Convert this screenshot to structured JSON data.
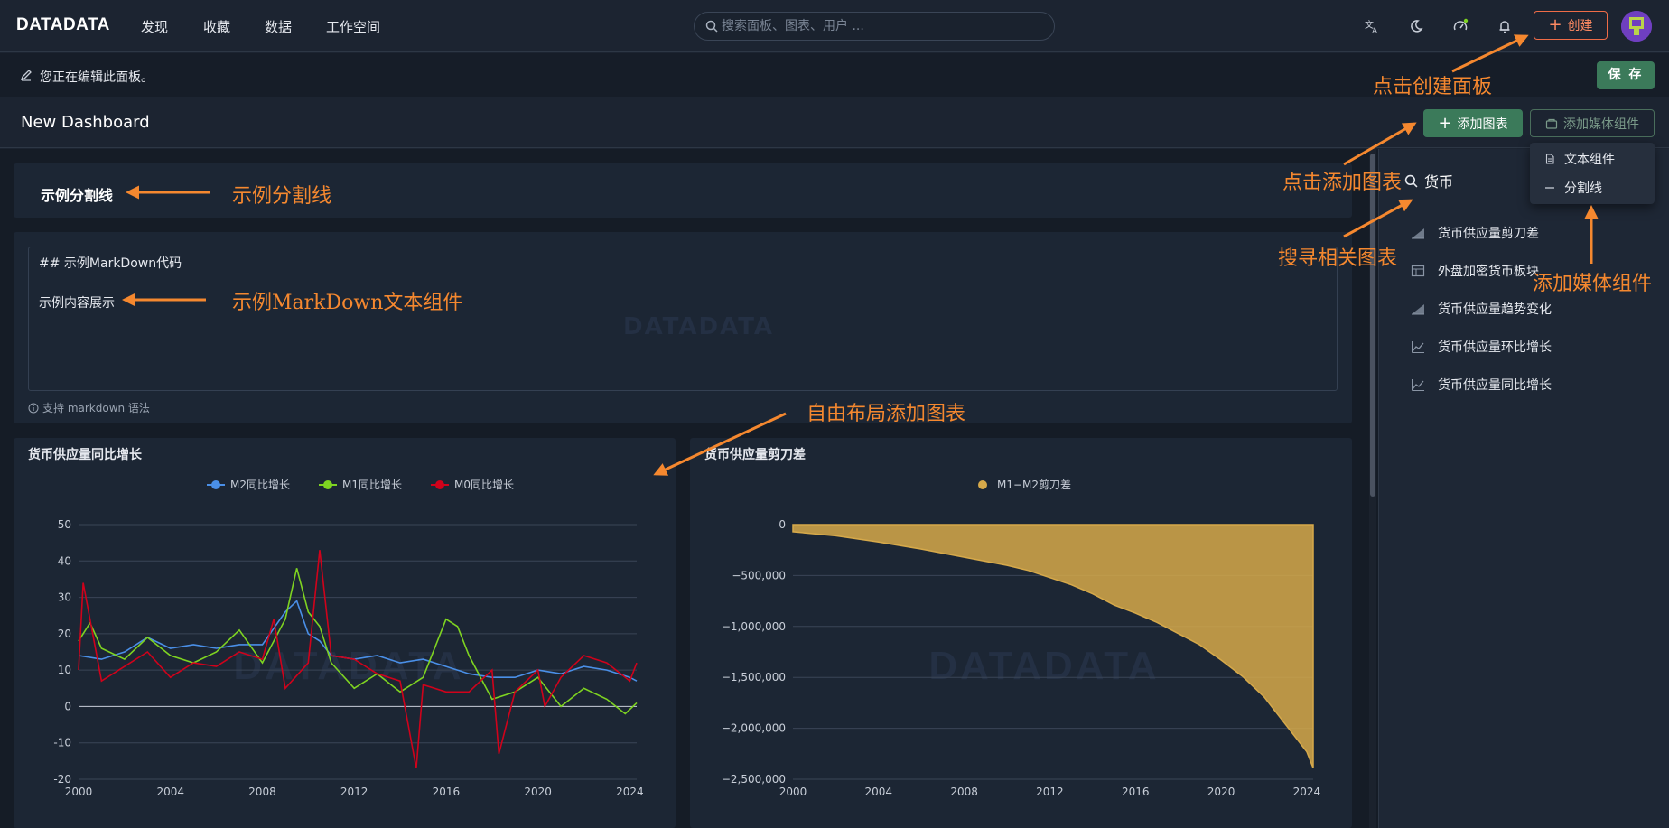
{
  "nav": {
    "logo": "DATADATA",
    "items": [
      "发现",
      "收藏",
      "数据",
      "工作空间"
    ],
    "search_placeholder": "搜索面板、图表、用户 ...",
    "create_label": "创建"
  },
  "editbar": {
    "text": "您正在编辑此面板。",
    "save_label": "保 存"
  },
  "dashboard": {
    "title": "New Dashboard",
    "add_chart_label": "添加图表",
    "add_media_label": "添加媒体组件",
    "media_options": [
      "文本组件",
      "分割线"
    ]
  },
  "divider": {
    "title": "示例分割线"
  },
  "markdown": {
    "code": "## 示例MarkDown代码",
    "content": "示例内容展示",
    "hint": "支持 markdown 语法",
    "watermark": "DATADATA"
  },
  "sidepanel": {
    "search_value": "货币",
    "charts": [
      {
        "label": "货币供应量剪刀差",
        "icon": "area-chart-icon"
      },
      {
        "label": "外盘加密货币板块",
        "icon": "table-icon"
      },
      {
        "label": "货币供应量趋势变化",
        "icon": "area-chart-icon"
      },
      {
        "label": "货币供应量环比增长",
        "icon": "line-chart-icon"
      },
      {
        "label": "货币供应量同比增长",
        "icon": "line-chart-icon"
      }
    ]
  },
  "annotations": {
    "create_panel": "点击创建面板",
    "add_chart": "点击添加图表",
    "search_chart": "搜寻相关图表",
    "add_media": "添加媒体组件",
    "divider_example": "示例分割线",
    "markdown_example": "示例MarkDown文本组件",
    "free_layout": "自由布局添加图表"
  },
  "colors": {
    "accent": "#f5882f",
    "green": "#3b7a5a",
    "m2": "#4a8fe7",
    "m1": "#7ed321",
    "m0": "#d0021b",
    "gap": "#d6a94a"
  },
  "chart_data": [
    {
      "type": "line",
      "title": "货币供应量同比增长",
      "x_ticks": [
        "2000",
        "2004",
        "2008",
        "2012",
        "2016",
        "2020",
        "2024"
      ],
      "ylim": [
        -20,
        50
      ],
      "y_ticks": [
        "50",
        "40",
        "30",
        "20",
        "10",
        "0",
        "-10",
        "-20"
      ],
      "legend_position": "top-center",
      "series": [
        {
          "name": "M2同比增长",
          "color": "#4a8fe7",
          "x": [
            2000,
            2001,
            2002,
            2003,
            2004,
            2005,
            2006,
            2007,
            2008,
            2009,
            2009.5,
            2010,
            2010.5,
            2011,
            2012,
            2013,
            2014,
            2015,
            2016,
            2017,
            2018,
            2019,
            2020,
            2021,
            2022,
            2023,
            2024,
            2024.3
          ],
          "values": [
            14,
            13,
            15,
            19,
            16,
            17,
            16,
            17,
            17,
            26,
            29,
            20,
            18,
            14,
            13,
            14,
            12,
            13,
            11,
            9,
            8,
            8,
            10,
            9,
            11,
            10,
            8,
            7
          ]
        },
        {
          "name": "M1同比增长",
          "color": "#7ed321",
          "x": [
            2000,
            2000.5,
            2001,
            2002,
            2003,
            2004,
            2005,
            2006,
            2007,
            2008,
            2009,
            2009.5,
            2010,
            2010.5,
            2011,
            2012,
            2013,
            2014,
            2015,
            2016,
            2016.5,
            2017,
            2018,
            2019,
            2020,
            2021,
            2022,
            2023,
            2023.8,
            2024.3
          ],
          "values": [
            18,
            23,
            16,
            13,
            19,
            14,
            12,
            15,
            21,
            12,
            24,
            38,
            26,
            22,
            12,
            5,
            9,
            4,
            8,
            24,
            22,
            14,
            2,
            4,
            8,
            0,
            5,
            2,
            -2,
            1
          ]
        },
        {
          "name": "M0同比增长",
          "color": "#d0021b",
          "x": [
            2000,
            2000.2,
            2001,
            2002,
            2003,
            2004,
            2005,
            2006,
            2007,
            2008,
            2008.5,
            2009,
            2010,
            2010.5,
            2011,
            2012,
            2013,
            2014,
            2014.7,
            2015,
            2016,
            2017,
            2018,
            2018.3,
            2019,
            2020,
            2020.3,
            2021,
            2022,
            2023,
            2024,
            2024.3
          ],
          "values": [
            10,
            34,
            7,
            11,
            15,
            8,
            12,
            11,
            15,
            13,
            24,
            5,
            12,
            43,
            14,
            13,
            9,
            7,
            -17,
            6,
            4,
            4,
            10,
            -13,
            4,
            10,
            0,
            8,
            14,
            12,
            7,
            12
          ]
        }
      ]
    },
    {
      "type": "area",
      "title": "货币供应量剪刀差",
      "x_ticks": [
        "2000",
        "2004",
        "2008",
        "2012",
        "2016",
        "2020",
        "2024"
      ],
      "ylim": [
        -2500000,
        0
      ],
      "y_ticks": [
        "0",
        "−500,000",
        "−1,000,000",
        "−1,500,000",
        "−2,000,000",
        "−2,500,000"
      ],
      "legend_position": "top-center",
      "series": [
        {
          "name": "M1−M2剪刀差",
          "color": "#d6a94a",
          "x": [
            2000,
            2002,
            2004,
            2006,
            2008,
            2010,
            2011,
            2012,
            2013,
            2014,
            2015,
            2016,
            2017,
            2018,
            2019,
            2020,
            2021,
            2022,
            2023,
            2024,
            2024.3
          ],
          "values": [
            -70000,
            -110000,
            -170000,
            -240000,
            -320000,
            -400000,
            -450000,
            -520000,
            -590000,
            -680000,
            -790000,
            -870000,
            -960000,
            -1070000,
            -1180000,
            -1330000,
            -1490000,
            -1690000,
            -1960000,
            -2230000,
            -2390000
          ]
        }
      ]
    }
  ]
}
